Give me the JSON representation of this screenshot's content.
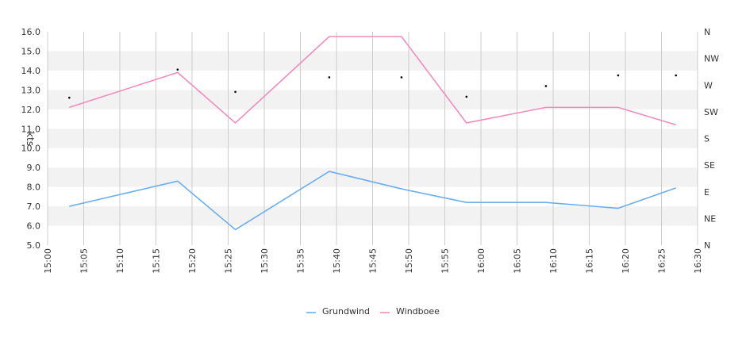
{
  "chart_data": {
    "type": "line",
    "title": "",
    "ylabel": "kts",
    "ylim": [
      5.0,
      16.0
    ],
    "y_ticks": [
      "5.0",
      "6.0",
      "7.0",
      "8.0",
      "9.0",
      "10.0",
      "11.0",
      "12.0",
      "13.0",
      "14.0",
      "15.0",
      "16.0"
    ],
    "x_ticks": [
      "15:00",
      "15:05",
      "15:10",
      "15:15",
      "15:20",
      "15:25",
      "15:30",
      "15:35",
      "15:40",
      "15:45",
      "15:50",
      "15:55",
      "16:00",
      "16:05",
      "16:10",
      "16:15",
      "16:20",
      "16:25",
      "16:30"
    ],
    "xlim": [
      "15:00",
      "16:30"
    ],
    "right_axis_ticks": [
      "N",
      "NE",
      "E",
      "SE",
      "S",
      "SW",
      "W",
      "NW",
      "N"
    ],
    "x": [
      "15:03",
      "15:18",
      "15:26",
      "15:39",
      "15:49",
      "15:58",
      "16:09",
      "16:19",
      "16:27"
    ],
    "series": [
      {
        "name": "Grundwind",
        "color": "#6aaef0",
        "values": [
          7.0,
          8.3,
          5.8,
          8.8,
          7.9,
          7.2,
          7.2,
          6.9,
          7.95
        ]
      },
      {
        "name": "Windboee",
        "color": "#f08cbd",
        "values": [
          12.1,
          13.9,
          11.3,
          15.75,
          15.75,
          11.3,
          12.1,
          12.1,
          11.2
        ]
      }
    ],
    "direction_points": {
      "color": "#000000",
      "values": [
        12.6,
        14.05,
        12.9,
        13.65,
        13.65,
        12.65,
        13.2,
        13.75,
        13.75
      ]
    },
    "grid": true,
    "legend": "bottom-center"
  }
}
